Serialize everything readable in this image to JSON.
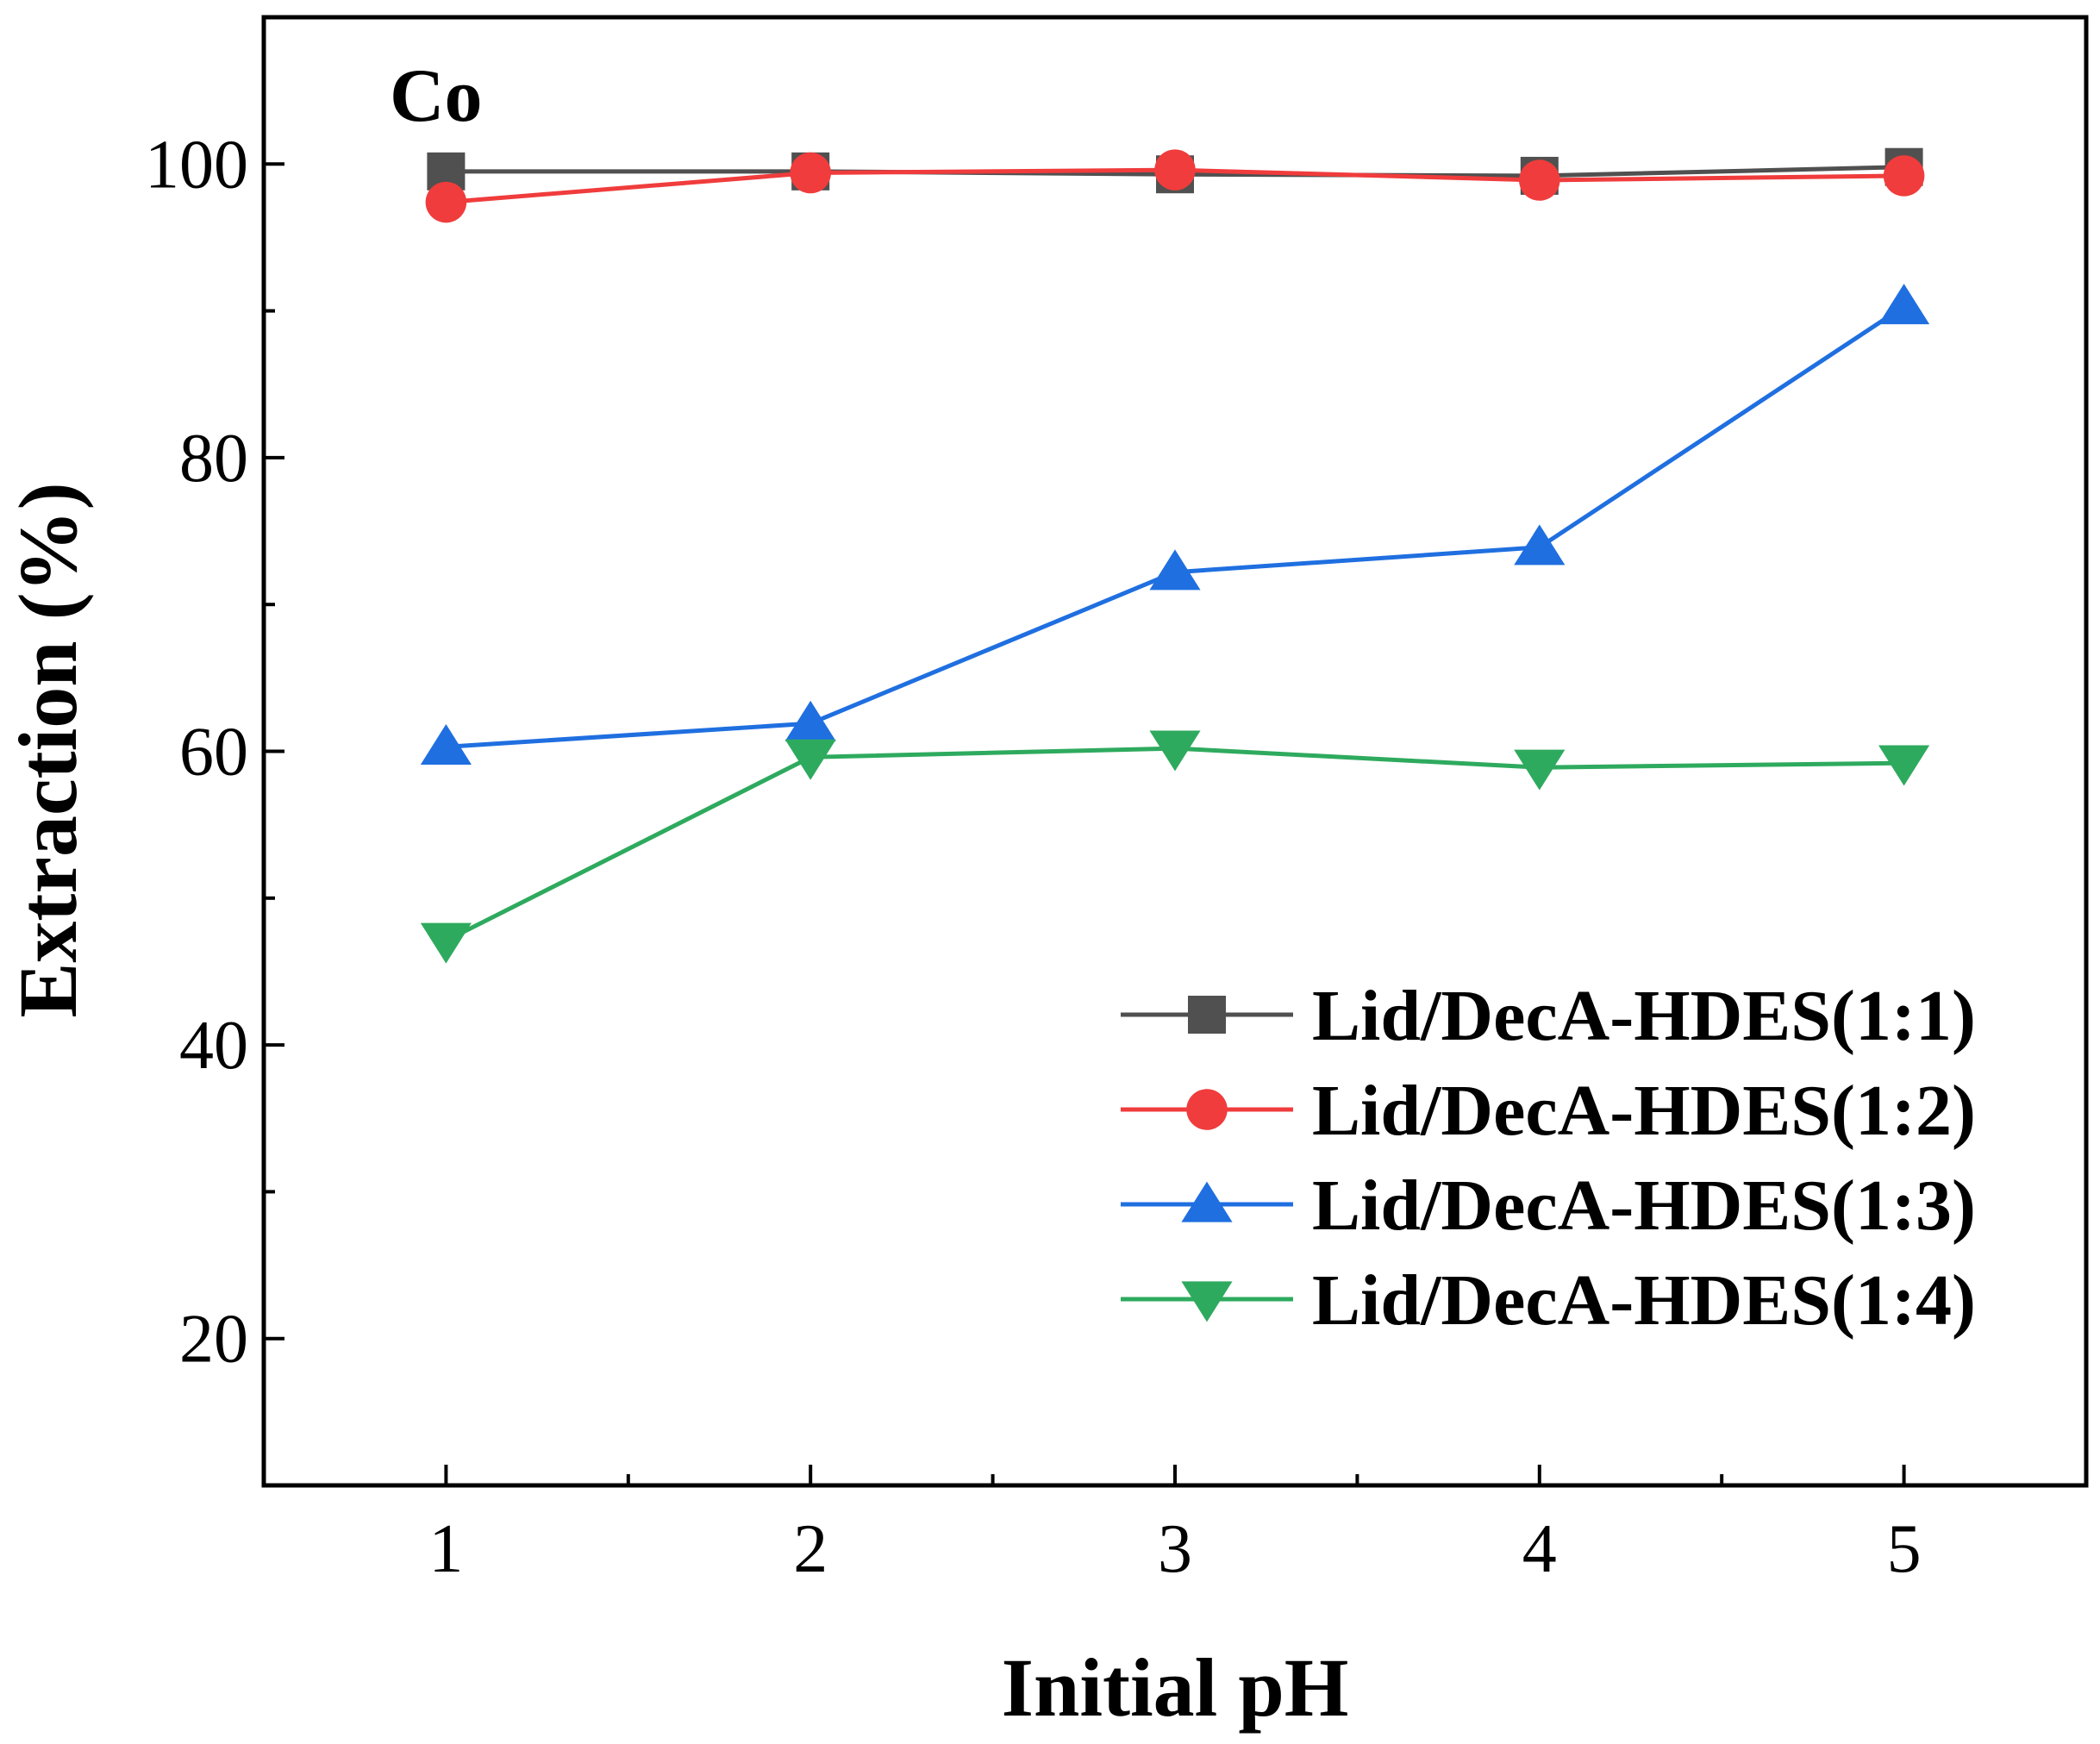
{
  "chart_data": {
    "type": "line",
    "panel_label": "Co",
    "xlabel": "Initial pH",
    "ylabel": "Extraction (%)",
    "xlim": [
      0.5,
      5.5
    ],
    "ylim": [
      10,
      110
    ],
    "x": [
      1,
      2,
      3,
      4,
      5
    ],
    "xticks": [
      1,
      2,
      3,
      4,
      5
    ],
    "yticks": [
      20,
      40,
      60,
      80,
      100
    ],
    "legend_position": "bottom-right",
    "series": [
      {
        "name": "Lid/DecA-HDES(1:1)",
        "color": "#505050",
        "marker": "square",
        "values": [
          99.5,
          99.5,
          99.3,
          99.2,
          99.8
        ]
      },
      {
        "name": "Lid/DecA-HDES(1:2)",
        "color": "#f03c3c",
        "marker": "circle",
        "values": [
          97.4,
          99.4,
          99.6,
          98.9,
          99.2
        ]
      },
      {
        "name": "Lid/DecA-HDES(1:3)",
        "color": "#1f6fe0",
        "marker": "triangle-up",
        "values": [
          60.3,
          61.9,
          72.2,
          73.9,
          90.3
        ]
      },
      {
        "name": "Lid/DecA-HDES(1:4)",
        "color": "#2eaa5e",
        "marker": "triangle-down",
        "values": [
          47.1,
          59.6,
          60.2,
          58.9,
          59.2
        ]
      }
    ]
  }
}
